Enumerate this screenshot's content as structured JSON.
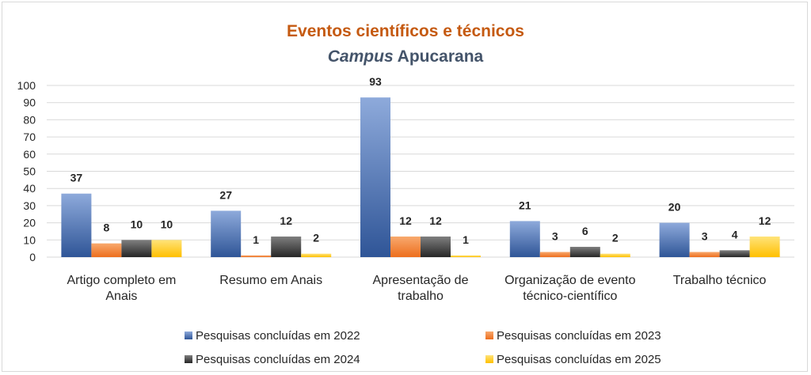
{
  "chart_data": {
    "type": "bar",
    "title": "Eventos científicos e técnicos",
    "subtitle_italic": "Campus",
    "subtitle_rest": " Apucarana",
    "title_color": "#c55a11",
    "subtitle_color": "#44546a",
    "categories": [
      [
        "Artigo completo em",
        "Anais"
      ],
      [
        "Resumo em Anais"
      ],
      [
        "Apresentação de",
        "trabalho"
      ],
      [
        "Organização de evento",
        "técnico-científico"
      ],
      [
        "Trabalho técnico"
      ]
    ],
    "series": [
      {
        "name": "Pesquisas concluídas em 2022",
        "values": [
          37,
          27,
          93,
          21,
          20
        ],
        "color_top": "#8eaadb",
        "color_bottom": "#2f5597"
      },
      {
        "name": "Pesquisas concluídas em 2023",
        "values": [
          8,
          1,
          12,
          3,
          3
        ],
        "color_top": "#f8a96e",
        "color_bottom": "#ed6e1d"
      },
      {
        "name": "Pesquisas concluídas em 2024",
        "values": [
          10,
          12,
          12,
          6,
          4
        ],
        "color_top": "#7f7f7f",
        "color_bottom": "#262626"
      },
      {
        "name": "Pesquisas concluídas em 2025",
        "values": [
          10,
          2,
          1,
          2,
          12
        ],
        "color_top": "#ffe37a",
        "color_bottom": "#ffc000"
      }
    ],
    "ylim": [
      0,
      100
    ],
    "yticks": [
      0,
      10,
      20,
      30,
      40,
      50,
      60,
      70,
      80,
      90,
      100
    ],
    "grid": true,
    "legend_position": "bottom"
  }
}
